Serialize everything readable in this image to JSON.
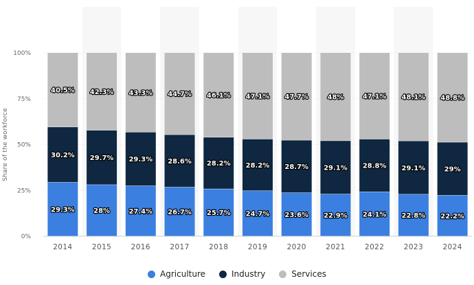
{
  "chart_data": {
    "type": "bar",
    "stacked": true,
    "categories": [
      "2014",
      "2015",
      "2016",
      "2017",
      "2018",
      "2019",
      "2020",
      "2021",
      "2022",
      "2023",
      "2024"
    ],
    "series": [
      {
        "name": "Agriculture",
        "color": "#3b7fe0",
        "values": [
          29.3,
          28,
          27.4,
          26.7,
          25.7,
          24.7,
          23.6,
          22.9,
          24.1,
          22.8,
          22.2
        ],
        "labels": [
          "29.3%",
          "28%",
          "27.4%",
          "26.7%",
          "25.7%",
          "24.7%",
          "23.6%",
          "22.9%",
          "24.1%",
          "22.8%",
          "22.2%"
        ]
      },
      {
        "name": "Industry",
        "color": "#0f2740",
        "values": [
          30.2,
          29.7,
          29.3,
          28.6,
          28.2,
          28.2,
          28.7,
          29.1,
          28.8,
          29.1,
          29
        ],
        "labels": [
          "30.2%",
          "29.7%",
          "29.3%",
          "28.6%",
          "28.2%",
          "28.2%",
          "28.7%",
          "29.1%",
          "28.8%",
          "29.1%",
          "29%"
        ]
      },
      {
        "name": "Services",
        "color": "#bdbdbd",
        "values": [
          40.5,
          42.3,
          43.3,
          44.7,
          46.1,
          47.1,
          47.7,
          48,
          47.1,
          48.1,
          48.8
        ],
        "labels": [
          "40.5%",
          "42.3%",
          "43.3%",
          "44.7%",
          "46.1%",
          "47.1%",
          "47.7%",
          "48%",
          "47.1%",
          "48.1%",
          "48.8%"
        ]
      }
    ],
    "ylabel": "Share of the workforce",
    "xlabel": "",
    "ylim": [
      0,
      100
    ],
    "yticks": [
      0,
      25,
      50,
      75,
      100
    ],
    "ytick_labels": [
      "0%",
      "25%",
      "50%",
      "75%",
      "100%"
    ],
    "grid": true,
    "legend_position": "bottom-center"
  },
  "legend": {
    "items": [
      {
        "label": "Agriculture"
      },
      {
        "label": "Industry"
      },
      {
        "label": "Services"
      }
    ]
  }
}
